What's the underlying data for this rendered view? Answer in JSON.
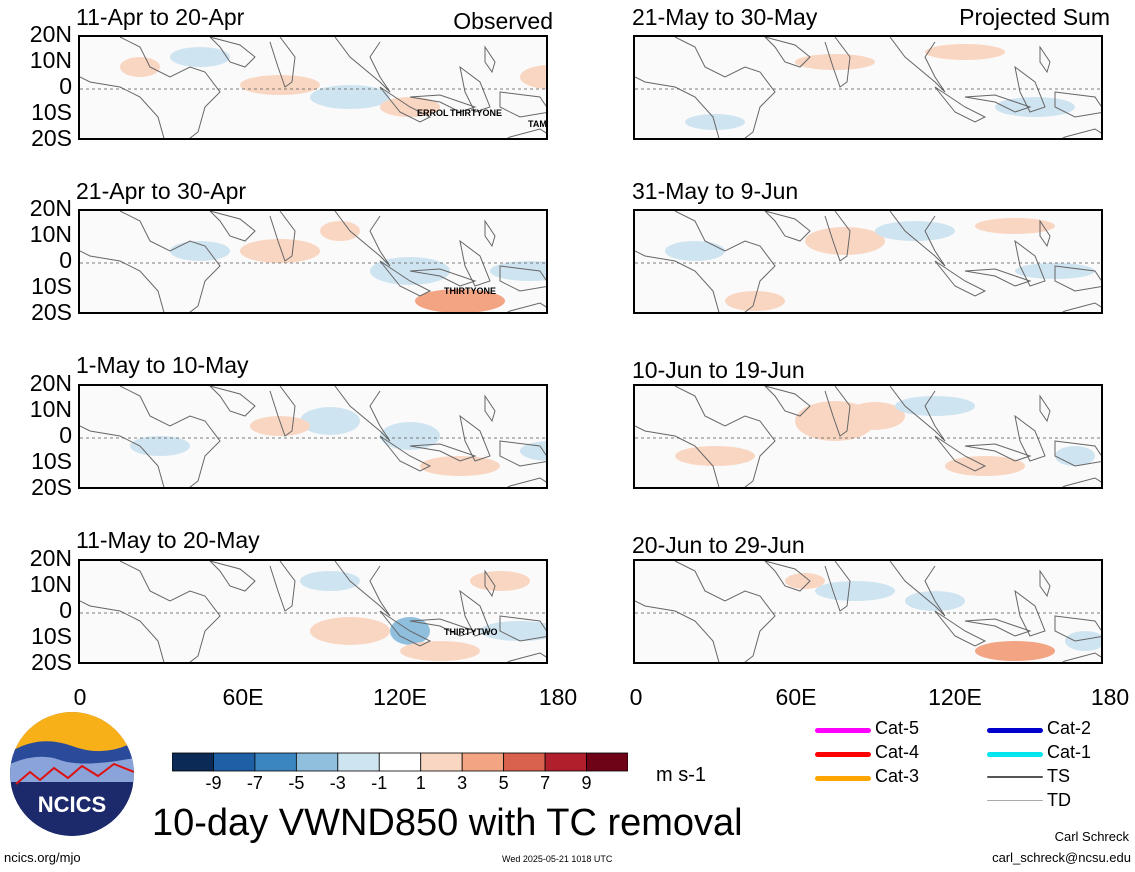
{
  "panels": {
    "left": [
      {
        "title": "11-Apr to 20-Apr",
        "corner": "Observed",
        "storms": [
          "ERROL",
          "THIRTYONE",
          "TAM"
        ]
      },
      {
        "title": "21-Apr to 30-Apr",
        "corner": "",
        "storms": [
          "THIRTYONE"
        ]
      },
      {
        "title": "1-May to 10-May",
        "corner": "",
        "storms": []
      },
      {
        "title": "11-May to 20-May",
        "corner": "",
        "storms": [
          "THIRTYTWO"
        ]
      }
    ],
    "right": [
      {
        "title": "21-May to 30-May",
        "corner": "Projected Sum"
      },
      {
        "title": "31-May to 9-Jun",
        "corner": ""
      },
      {
        "title": "10-Jun to 19-Jun",
        "corner": ""
      },
      {
        "title": "20-Jun to 29-Jun",
        "corner": ""
      }
    ]
  },
  "axes": {
    "y_ticks": [
      "20N",
      "10N",
      "0",
      "10S",
      "20S"
    ],
    "x_ticks": [
      "0",
      "60E",
      "120E",
      "180"
    ]
  },
  "colorbar": {
    "labels": [
      "-9",
      "-7",
      "-5",
      "-3",
      "-1",
      "1",
      "3",
      "5",
      "7",
      "9"
    ],
    "colors": [
      "#0b2a55",
      "#1f5fa6",
      "#3b85c0",
      "#8fbfdd",
      "#cfe4f1",
      "#ffffff",
      "#f9d6c2",
      "#f2a483",
      "#d9624e",
      "#b21f2c",
      "#6e0318"
    ],
    "units": "m s-1"
  },
  "legend": [
    {
      "label": "Cat-5",
      "color": "#ff00ff"
    },
    {
      "label": "Cat-4",
      "color": "#ff0000"
    },
    {
      "label": "Cat-3",
      "color": "#ffa500"
    },
    {
      "label": "Cat-2",
      "color": "#0000cc"
    },
    {
      "label": "Cat-1",
      "color": "#00e5ee"
    },
    {
      "label": "TS",
      "color": "#555555"
    },
    {
      "label": "TD",
      "color": "#aaaaaa"
    }
  ],
  "title": "10-day VWND850 with TC removal",
  "logo_text": "NCICS",
  "footer": {
    "site": "ncics.org/mjo",
    "timestamp": "Wed 2025-05-21 1018 UTC",
    "author": "Carl Schreck",
    "email": "carl_schreck@ncsu.edu"
  }
}
